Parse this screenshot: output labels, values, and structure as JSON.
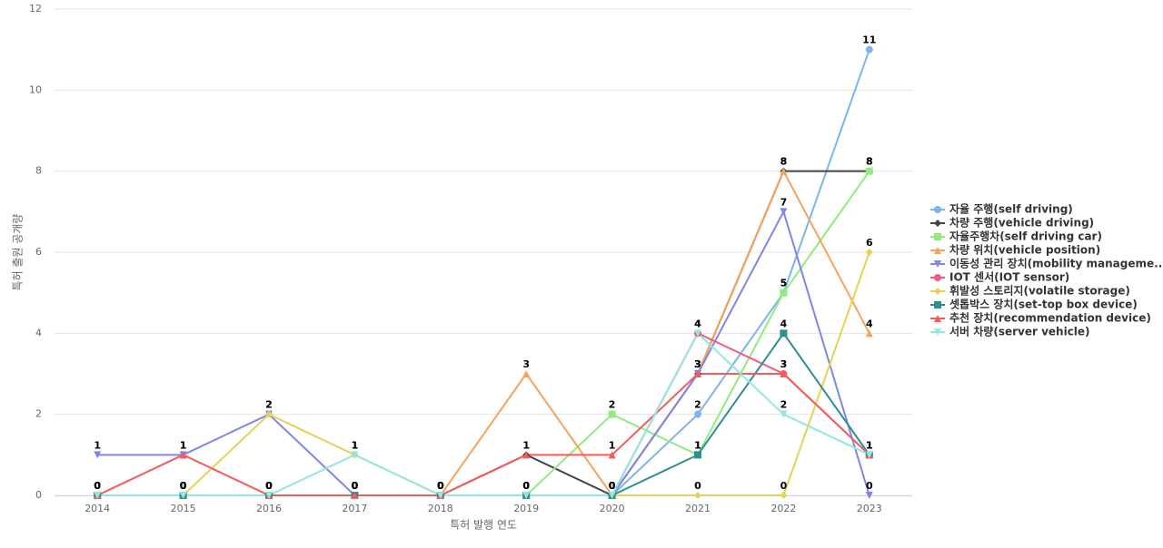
{
  "chart_data": {
    "type": "line",
    "x_label": "특허 발행 연도",
    "y_label": "특허 출원 공개량",
    "categories": [
      "2014",
      "2015",
      "2016",
      "2017",
      "2018",
      "2019",
      "2020",
      "2021",
      "2022",
      "2023"
    ],
    "ylim": [
      0,
      12
    ],
    "yticks": [
      0,
      2,
      4,
      6,
      8,
      10,
      12
    ],
    "grid": true,
    "legend": "right",
    "series": [
      {
        "name": "자율 주행(self driving)",
        "color": "#7cb5ec",
        "symbol": "circle",
        "values": [
          0,
          0,
          0,
          0,
          0,
          0,
          0,
          2,
          5,
          11
        ]
      },
      {
        "name": "차량 주행(vehicle driving)",
        "color": "#434348",
        "symbol": "diamond",
        "values": [
          0,
          0,
          0,
          0,
          0,
          1,
          0,
          3,
          8,
          8
        ]
      },
      {
        "name": "자율주행차(self driving car)",
        "color": "#90ed7d",
        "symbol": "square",
        "values": [
          0,
          0,
          0,
          0,
          0,
          0,
          2,
          1,
          5,
          8
        ]
      },
      {
        "name": "차량 위치(vehicle position)",
        "color": "#f7a35c",
        "symbol": "triangle",
        "values": [
          0,
          0,
          0,
          0,
          0,
          3,
          0,
          3,
          8,
          4
        ]
      },
      {
        "name": "이동성 관리 장치(mobility manageme...",
        "color": "#8085e9",
        "symbol": "triangle-down",
        "values": [
          1,
          1,
          2,
          0,
          0,
          0,
          0,
          3,
          7,
          0
        ]
      },
      {
        "name": "IOT 센서(IOT sensor)",
        "color": "#f15c80",
        "symbol": "circle",
        "values": [
          0,
          0,
          0,
          0,
          0,
          0,
          0,
          4,
          3,
          1
        ]
      },
      {
        "name": "휘발성 스토리지(volatile storage)",
        "color": "#e4d354",
        "symbol": "diamond",
        "values": [
          0,
          0,
          2,
          1,
          0,
          0,
          0,
          0,
          0,
          6
        ]
      },
      {
        "name": "셋톱박스 장치(set-top box device)",
        "color": "#2b908f",
        "symbol": "square",
        "values": [
          0,
          0,
          0,
          0,
          0,
          0,
          0,
          1,
          4,
          1
        ]
      },
      {
        "name": "추천 장치(recommendation device)",
        "color": "#f45b5b",
        "symbol": "triangle",
        "values": [
          0,
          1,
          0,
          0,
          0,
          1,
          1,
          3,
          3,
          1
        ]
      },
      {
        "name": "서버 차량(server vehicle)",
        "color": "#91e8e1",
        "symbol": "triangle-down",
        "values": [
          0,
          0,
          0,
          1,
          0,
          0,
          0,
          4,
          2,
          1
        ]
      }
    ]
  }
}
